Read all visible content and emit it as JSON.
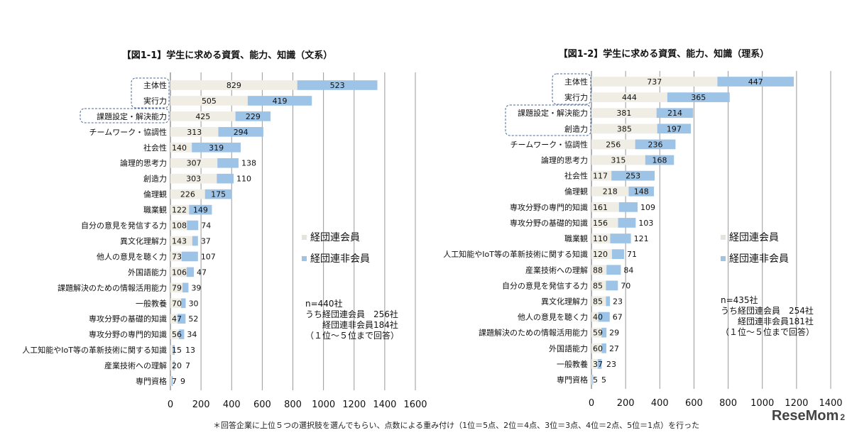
{
  "chart_data": [
    {
      "type": "bar",
      "orientation": "horizontal",
      "stacked": true,
      "title": "【図1-1】学生に求める資質、能力、知識（文系）",
      "categories": [
        "主体性",
        "実行力",
        "課題設定・解決能力",
        "チームワーク・協調性",
        "社会性",
        "論理的思考力",
        "創造力",
        "倫理観",
        "職業観",
        "自分の意見を発信する力",
        "異文化理解力",
        "他人の意見を聴く力",
        "外国語能力",
        "課題解決のための情報活用能力",
        "一般教養",
        "専攻分野の基礎的知識",
        "専攻分野の専門的知識",
        "人工知能やIoT等の革新技術に関する知識",
        "産業技術への理解",
        "専門資格"
      ],
      "series": [
        {
          "name": "経団連会員",
          "values": [
            829,
            505,
            425,
            313,
            140,
            307,
            303,
            226,
            122,
            108,
            143,
            73,
            106,
            79,
            70,
            47,
            56,
            15,
            20,
            7
          ]
        },
        {
          "name": "経団連非会員",
          "values": [
            523,
            419,
            229,
            294,
            319,
            138,
            110,
            175,
            149,
            74,
            37,
            107,
            47,
            39,
            30,
            52,
            34,
            13,
            7,
            9
          ]
        }
      ],
      "xlim": [
        0,
        1600
      ],
      "xticks": [
        0,
        200,
        400,
        600,
        800,
        1000,
        1200,
        1400,
        1600
      ],
      "grid": true,
      "legend": "right",
      "highlighted": [
        "主体性",
        "実行力",
        "課題設定・解決能力"
      ],
      "note": [
        "n=440社",
        "うち経団連会員　256社",
        "　　経団連非会員184社",
        "（１位～５位まで回答）"
      ]
    },
    {
      "type": "bar",
      "orientation": "horizontal",
      "stacked": true,
      "title": "【図1-2】学生に求める資質、能力、知識（理系）",
      "categories": [
        "主体性",
        "実行力",
        "課題設定・解決能力",
        "創造力",
        "チームワーク・協調性",
        "論理的思考力",
        "社会性",
        "倫理観",
        "専攻分野の専門的知識",
        "専攻分野の基礎的知識",
        "職業観",
        "人工知能やIoT等の革新技術に関する知識",
        "産業技術への理解",
        "自分の意見を発信する力",
        "異文化理解力",
        "他人の意見を聴く力",
        "課題解決のための情報活用能力",
        "外国語能力",
        "一般教養",
        "専門資格"
      ],
      "series": [
        {
          "name": "経団連会員",
          "values": [
            737,
            444,
            381,
            385,
            256,
            315,
            117,
            218,
            161,
            156,
            110,
            120,
            88,
            85,
            85,
            40,
            59,
            60,
            37,
            5
          ]
        },
        {
          "name": "経団連非会員",
          "values": [
            447,
            365,
            214,
            197,
            236,
            168,
            253,
            148,
            109,
            103,
            121,
            71,
            84,
            70,
            23,
            67,
            29,
            27,
            23,
            5
          ]
        }
      ],
      "xlim": [
        0,
        1400
      ],
      "xticks": [
        0,
        200,
        400,
        600,
        800,
        1000,
        1200,
        1400
      ],
      "grid": true,
      "legend": "right",
      "highlighted": [
        "主体性",
        "実行力",
        "課題設定・解決能力",
        "創造力"
      ],
      "note": [
        "n=435社",
        "うち経団連会員　254社",
        "　　経団連非会員181社",
        "（１位～５位まで回答）"
      ]
    }
  ],
  "colors": {
    "member": "#f0ede4",
    "nonmember": "#9dc3e6",
    "grid": "#999999",
    "highlight_box": "#4a6a9a"
  },
  "footnote": "＊回答企業に上位５つの選択肢を選んでもらい、点数による重み付け（1位＝5点、2位＝4点、3位＝3点、4位＝2点、5位＝1点）を行った",
  "logo": "ReseMom",
  "page_number": "2"
}
